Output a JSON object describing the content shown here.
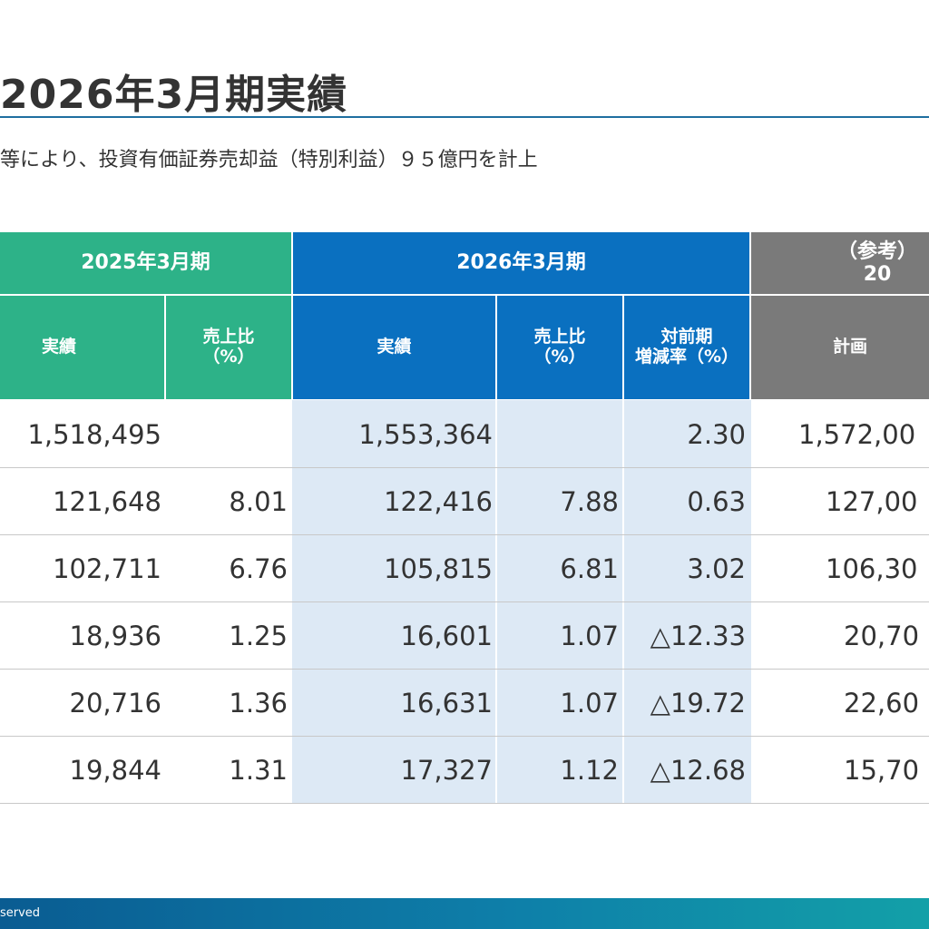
{
  "title": "2026年3月期実績",
  "subtitle": "等により、投資有価証券売却益（特別利益）９５億円を計上",
  "table": {
    "group_headers": {
      "fy2025": "2025年3月期",
      "fy2026": "2026年3月期",
      "reference": "（参考）20"
    },
    "sub_headers": {
      "actual_2025": "実績",
      "ratio_2025_line1": "売上比",
      "ratio_2025_line2": "（%）",
      "actual_2026": "実績",
      "ratio_2026_line1": "売上比",
      "ratio_2026_line2": "（%）",
      "yoy_line1": "対前期",
      "yoy_line2": "増減率（%）",
      "plan": "計画"
    },
    "rows": [
      {
        "actual_2025": "1,518,495",
        "ratio_2025": "",
        "actual_2026": "1,553,364",
        "ratio_2026": "",
        "yoy": "2.30",
        "plan": "1,572,00"
      },
      {
        "actual_2025": "121,648",
        "ratio_2025": "8.01",
        "actual_2026": "122,416",
        "ratio_2026": "7.88",
        "yoy": "0.63",
        "plan": "127,00"
      },
      {
        "actual_2025": "102,711",
        "ratio_2025": "6.76",
        "actual_2026": "105,815",
        "ratio_2026": "6.81",
        "yoy": "3.02",
        "plan": "106,30"
      },
      {
        "actual_2025": "18,936",
        "ratio_2025": "1.25",
        "actual_2026": "16,601",
        "ratio_2026": "1.07",
        "yoy": "△12.33",
        "plan": "20,70"
      },
      {
        "actual_2025": "20,716",
        "ratio_2025": "1.36",
        "actual_2026": "16,631",
        "ratio_2026": "1.07",
        "yoy": "△19.72",
        "plan": "22,60"
      },
      {
        "actual_2025": "19,844",
        "ratio_2025": "1.31",
        "actual_2026": "17,327",
        "ratio_2026": "1.12",
        "yoy": "△12.68",
        "plan": "15,70"
      }
    ]
  },
  "footer": {
    "text": "served"
  },
  "colors": {
    "fy2025_header": "#2db288",
    "fy2026_header": "#0a70c0",
    "reference_header": "#7a7a7a",
    "highlight_band": "#dde9f5",
    "title_rule": "#1f6fa0"
  }
}
